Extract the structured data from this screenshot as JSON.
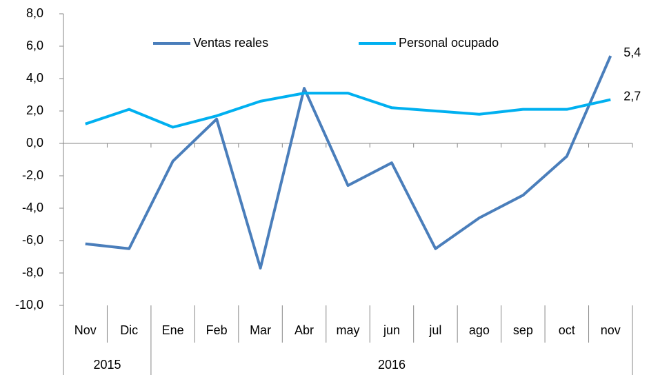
{
  "chart_data": {
    "type": "line",
    "categories": [
      "Nov",
      "Dic",
      "Ene",
      "Feb",
      "Mar",
      "Abr",
      "may",
      "jun",
      "jul",
      "ago",
      "sep",
      "oct",
      "nov"
    ],
    "groups": [
      {
        "label": "2015",
        "span": 2
      },
      {
        "label": "2016",
        "span": 11
      }
    ],
    "series": [
      {
        "name": "Ventas reales",
        "color": "#4a7ebb",
        "values": [
          -6.2,
          -6.5,
          -1.1,
          1.5,
          -7.7,
          3.4,
          -2.6,
          -1.2,
          -6.5,
          -4.6,
          -3.2,
          -0.8,
          5.4
        ],
        "value_labels": [
          null,
          null,
          null,
          null,
          null,
          null,
          null,
          null,
          null,
          null,
          null,
          null,
          "5,4"
        ]
      },
      {
        "name": "Personal ocupado",
        "color": "#00b0f0",
        "values": [
          1.2,
          2.1,
          1.0,
          1.7,
          2.6,
          3.1,
          3.1,
          2.2,
          2.0,
          1.8,
          2.1,
          2.1,
          2.7
        ],
        "value_labels": [
          null,
          null,
          null,
          null,
          null,
          null,
          null,
          null,
          null,
          null,
          null,
          null,
          "2,7"
        ]
      }
    ],
    "ylim": [
      -10,
      8
    ],
    "yticks": [
      {
        "value": -10,
        "label": "-10,0"
      },
      {
        "value": -8,
        "label": "-8,0"
      },
      {
        "value": -6,
        "label": "-6,0"
      },
      {
        "value": -4,
        "label": "-4,0"
      },
      {
        "value": -2,
        "label": "-2,0"
      },
      {
        "value": 0,
        "label": "0,0"
      },
      {
        "value": 2,
        "label": "2,0"
      },
      {
        "value": 4,
        "label": "4,0"
      },
      {
        "value": 6,
        "label": "6,0"
      },
      {
        "value": 8,
        "label": "8,0"
      }
    ],
    "legend": "top",
    "grid": false
  }
}
